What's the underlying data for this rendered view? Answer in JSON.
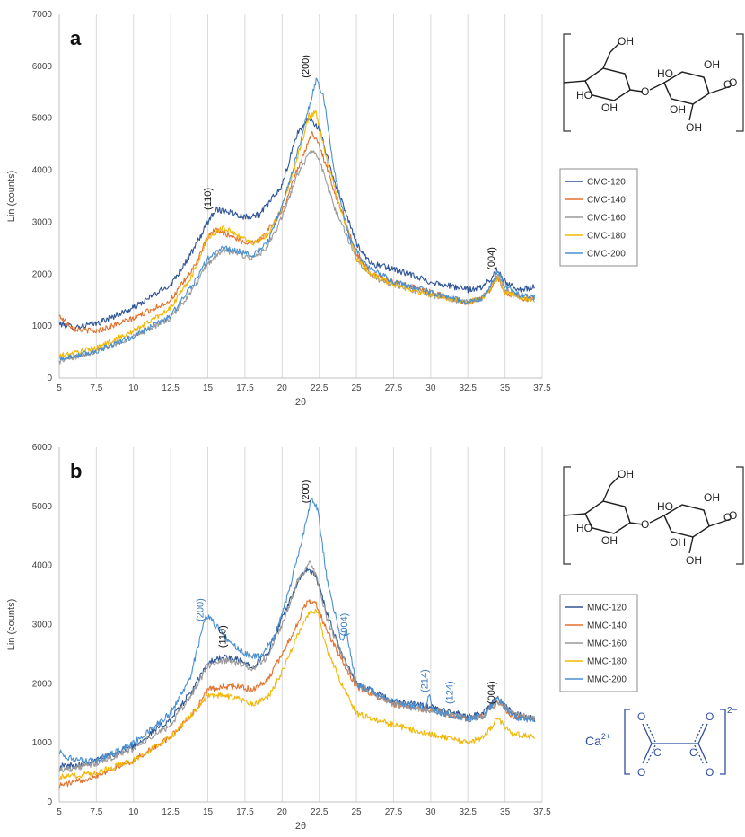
{
  "colors": {
    "s120": "#2E5597",
    "s140": "#E3702B",
    "s160": "#9A9A9A",
    "s180": "#F2B705",
    "s200": "#4A8FD0",
    "blue_annotation": "#3C7CC0",
    "black_annotation": "#111111",
    "grid": "#d9d9d9",
    "oxalate": "#2f4ea0"
  },
  "chart_data": [
    {
      "type": "line",
      "panel_label": "a",
      "xlabel": "2θ",
      "ylabel": "Lin (counts)",
      "xlim": [
        5,
        37.5
      ],
      "ylim": [
        0,
        7000
      ],
      "xticks": [
        "5",
        "7.5",
        "10",
        "12.5",
        "15",
        "17.5",
        "20",
        "22.5",
        "25",
        "27.5",
        "30",
        "32.5",
        "35",
        "37.5"
      ],
      "yticks": [
        "0",
        "1000",
        "2000",
        "3000",
        "4000",
        "5000",
        "6000",
        "7000"
      ],
      "grid": "vertical",
      "legend_position": "right",
      "series": [
        {
          "name": "CMC-120",
          "color_key": "s120",
          "noise": 60,
          "x": [
            5,
            6,
            7.5,
            10,
            12.5,
            14,
            15,
            15.5,
            16.5,
            17.5,
            18.5,
            20,
            21,
            21.8,
            22.5,
            23.5,
            25,
            26,
            27.5,
            30,
            32.5,
            33.5,
            34,
            34.5,
            35,
            36,
            37
          ],
          "values": [
            1050,
            980,
            1050,
            1350,
            1800,
            2450,
            3000,
            3250,
            3200,
            3100,
            3150,
            3700,
            4700,
            5000,
            4800,
            3800,
            2600,
            2200,
            2100,
            1850,
            1700,
            1750,
            1900,
            2100,
            1850,
            1700,
            1750
          ]
        },
        {
          "name": "CMC-140",
          "color_key": "s140",
          "noise": 55,
          "x": [
            5,
            6,
            7.5,
            10,
            12.5,
            14,
            15,
            15.5,
            16.5,
            17.5,
            18.5,
            20,
            21,
            22,
            22.5,
            23.5,
            25,
            26,
            27.5,
            30,
            32.5,
            33.5,
            34,
            34.5,
            35,
            36,
            37
          ],
          "values": [
            1200,
            950,
            900,
            1150,
            1500,
            2100,
            2700,
            2850,
            2750,
            2600,
            2650,
            3200,
            4000,
            4700,
            4500,
            3600,
            2400,
            2000,
            1850,
            1650,
            1450,
            1550,
            1700,
            1950,
            1650,
            1550,
            1500
          ]
        },
        {
          "name": "CMC-160",
          "color_key": "s160",
          "noise": 55,
          "x": [
            5,
            6,
            7.5,
            10,
            12.5,
            14,
            15,
            16,
            17,
            18,
            19,
            20,
            21,
            22,
            22.5,
            23.5,
            25,
            26,
            27.5,
            30,
            32.5,
            33.5,
            34,
            34.5,
            35,
            36,
            37
          ],
          "values": [
            320,
            400,
            520,
            800,
            1150,
            1700,
            2200,
            2450,
            2400,
            2300,
            2500,
            3100,
            3900,
            4400,
            4200,
            3300,
            2300,
            1950,
            1800,
            1600,
            1450,
            1550,
            1750,
            2000,
            1700,
            1550,
            1500
          ]
        },
        {
          "name": "CMC-180",
          "color_key": "s180",
          "noise": 55,
          "x": [
            5,
            6,
            7.5,
            10,
            12.5,
            14,
            15,
            16,
            17,
            18,
            19,
            20,
            21,
            21.8,
            22.3,
            23,
            24,
            25,
            26,
            27.5,
            30,
            32.5,
            33.5,
            34,
            34.5,
            35,
            36,
            37
          ],
          "values": [
            420,
            480,
            580,
            900,
            1350,
            2000,
            2700,
            2900,
            2750,
            2600,
            2750,
            3300,
            4200,
            5050,
            5100,
            4200,
            3200,
            2300,
            2000,
            1800,
            1600,
            1450,
            1550,
            1700,
            1950,
            1650,
            1550,
            1500
          ]
        },
        {
          "name": "CMC-200",
          "color_key": "s200",
          "noise": 55,
          "x": [
            5,
            6,
            7.5,
            10,
            12.5,
            14,
            15,
            16,
            17,
            18,
            19,
            20,
            21,
            21.8,
            22.3,
            22.8,
            23.5,
            24.5,
            25.5,
            27.5,
            30,
            32.5,
            33.5,
            34,
            34.5,
            35,
            36,
            37
          ],
          "values": [
            380,
            420,
            520,
            800,
            1200,
            1800,
            2300,
            2500,
            2450,
            2350,
            2600,
            3300,
            4300,
            5200,
            5750,
            5400,
            4000,
            2700,
            2200,
            1850,
            1650,
            1450,
            1550,
            1750,
            2100,
            1750,
            1600,
            1550
          ]
        }
      ],
      "annotations": [
        {
          "text": "(110)",
          "x": 15.2,
          "y": 3450,
          "color_key": "black_annotation"
        },
        {
          "text": "(200)",
          "x": 21.8,
          "y": 6000,
          "color_key": "black_annotation"
        },
        {
          "text": "(004)",
          "x": 34.3,
          "y": 2300,
          "color_key": "black_annotation"
        }
      ]
    },
    {
      "type": "line",
      "panel_label": "b",
      "xlabel": "2θ",
      "ylabel": "Lin (counts)",
      "xlim": [
        5,
        37.5
      ],
      "ylim": [
        0,
        6000
      ],
      "xticks": [
        "5",
        "7.5",
        "10",
        "12.5",
        "15",
        "17.5",
        "20",
        "22.5",
        "25",
        "27.5",
        "30",
        "32.5",
        "35",
        "37.5"
      ],
      "yticks": [
        "0",
        "1000",
        "2000",
        "3000",
        "4000",
        "5000",
        "6000"
      ],
      "grid": "vertical",
      "legend_position": "right",
      "series": [
        {
          "name": "MMC-120",
          "color_key": "s120",
          "noise": 55,
          "x": [
            5,
            6,
            7.5,
            10,
            12.5,
            14,
            15,
            16,
            17,
            18,
            19,
            20,
            21,
            21.7,
            22.3,
            23,
            24,
            25,
            27.5,
            30,
            32.5,
            33.5,
            34.5,
            35.5,
            37
          ],
          "values": [
            600,
            620,
            700,
            950,
            1400,
            1900,
            2350,
            2450,
            2400,
            2300,
            2500,
            3100,
            3700,
            3950,
            3800,
            3200,
            2500,
            2000,
            1700,
            1600,
            1450,
            1500,
            1750,
            1500,
            1400
          ]
        },
        {
          "name": "MMC-140",
          "color_key": "s140",
          "noise": 50,
          "x": [
            5,
            6,
            7.5,
            10,
            12.5,
            14,
            15,
            16,
            17,
            18,
            19,
            20,
            21,
            21.7,
            22.3,
            23,
            24,
            25,
            27.5,
            30,
            32.5,
            33.5,
            34.5,
            35.5,
            37
          ],
          "values": [
            280,
            330,
            450,
            700,
            1100,
            1500,
            1900,
            1950,
            1950,
            1900,
            2050,
            2500,
            3000,
            3400,
            3350,
            2900,
            2400,
            1950,
            1650,
            1550,
            1400,
            1450,
            1700,
            1450,
            1400
          ]
        },
        {
          "name": "MMC-160",
          "color_key": "s160",
          "noise": 55,
          "x": [
            5,
            6,
            7.5,
            10,
            12.5,
            14,
            15,
            16,
            17,
            18,
            19,
            20,
            21,
            21.9,
            22.4,
            23,
            24,
            25,
            27.5,
            30,
            32.5,
            33.5,
            34.5,
            35.5,
            37
          ],
          "values": [
            550,
            570,
            650,
            900,
            1300,
            1850,
            2300,
            2400,
            2350,
            2250,
            2450,
            3000,
            3700,
            4050,
            3750,
            3100,
            2500,
            2000,
            1650,
            1550,
            1400,
            1450,
            1700,
            1500,
            1400
          ]
        },
        {
          "name": "MMC-180",
          "color_key": "s180",
          "noise": 50,
          "x": [
            5,
            6,
            7.5,
            10,
            12.5,
            14,
            15,
            16,
            17,
            18,
            19,
            20,
            21,
            21.9,
            22.4,
            23,
            24,
            25,
            27.5,
            30,
            32.5,
            33.5,
            34.5,
            35.5,
            37
          ],
          "values": [
            420,
            440,
            500,
            700,
            1100,
            1500,
            1800,
            1800,
            1750,
            1650,
            1750,
            2200,
            2800,
            3250,
            3200,
            2600,
            2000,
            1500,
            1300,
            1150,
            1000,
            1100,
            1400,
            1150,
            1100
          ]
        },
        {
          "name": "MMC-200",
          "color_key": "s200",
          "noise": 55,
          "x": [
            5,
            6,
            7.5,
            10,
            12.5,
            13.8,
            14.5,
            14.9,
            15.5,
            16.5,
            17.5,
            18.5,
            19.5,
            20.5,
            21.5,
            22,
            22.4,
            23,
            24,
            24.3,
            25,
            27.5,
            29.7,
            29.9,
            30.1,
            32.5,
            33.5,
            34.5,
            35.5,
            37
          ],
          "values": [
            850,
            700,
            700,
            1000,
            1500,
            2100,
            2800,
            3150,
            3000,
            2700,
            2500,
            2450,
            2800,
            3600,
            4600,
            5150,
            4950,
            3800,
            2700,
            2900,
            2000,
            1700,
            1600,
            1850,
            1550,
            1400,
            1450,
            1750,
            1450,
            1350
          ]
        }
      ],
      "annotations": [
        {
          "text": "(200)",
          "x": 14.7,
          "y": 3250,
          "color_key": "blue_annotation"
        },
        {
          "text": "(110)",
          "x": 16.2,
          "y": 2800,
          "color_key": "black_annotation"
        },
        {
          "text": "(200)",
          "x": 21.8,
          "y": 5250,
          "color_key": "black_annotation"
        },
        {
          "text": "(004)",
          "x": 24.4,
          "y": 3000,
          "color_key": "blue_annotation"
        },
        {
          "text": "(214)",
          "x": 29.8,
          "y": 2050,
          "color_key": "blue_annotation"
        },
        {
          "text": "(124)",
          "x": 31.5,
          "y": 1850,
          "color_key": "blue_annotation"
        },
        {
          "text": "(004)",
          "x": 34.3,
          "y": 1850,
          "color_key": "black_annotation"
        }
      ]
    }
  ],
  "structures": {
    "cellulose_labels": [
      "OH",
      "HO",
      "HO",
      "OH",
      "O",
      "O",
      "O",
      "OH",
      "OH",
      "OH"
    ],
    "oxalate": {
      "cation": "Ca",
      "cation_charge": "2+",
      "anion_charge": "2−",
      "atoms": [
        "O",
        "C",
        "C",
        "O",
        "O",
        "O"
      ]
    }
  }
}
